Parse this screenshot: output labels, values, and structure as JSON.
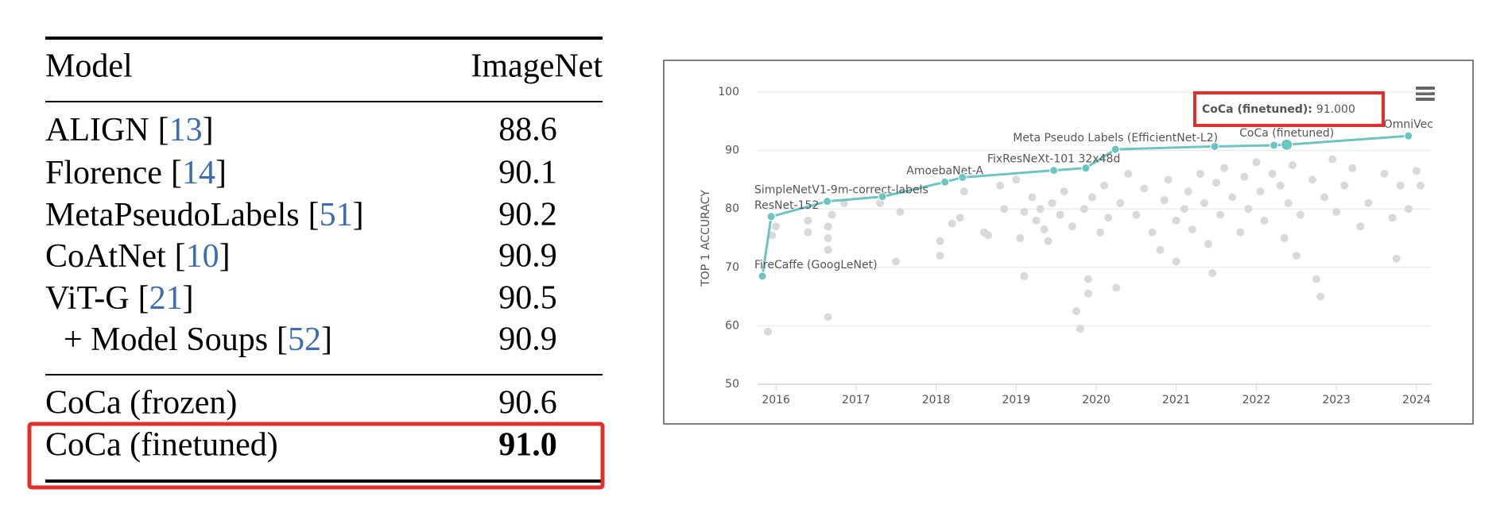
{
  "table": {
    "header": {
      "model": "Model",
      "score": "ImageNet"
    },
    "rows": [
      {
        "model": "ALIGN",
        "ref": "[13]",
        "value": "88.6"
      },
      {
        "model": "Florence",
        "ref": "[14]",
        "value": "90.1"
      },
      {
        "model": "MetaPseudoLabels",
        "ref": "[51]",
        "value": "90.2"
      },
      {
        "model": "CoAtNet",
        "ref": "[10]",
        "value": "90.9"
      },
      {
        "model": "ViT-G",
        "ref": "[21]",
        "value": "90.5"
      },
      {
        "model": "+ Model Soups",
        "ref": "[52]",
        "value": "90.9"
      }
    ],
    "coca_rows": [
      {
        "model": "CoCa (frozen)",
        "value": "90.6"
      },
      {
        "model": "CoCa (finetuned)",
        "value": "91.0"
      }
    ]
  },
  "chart_data": {
    "type": "scatter",
    "y_label": "TOP 1 ACCURACY",
    "xlim": [
      2015.77,
      2024.19
    ],
    "xticks": [
      2016,
      2017,
      2018,
      2019,
      2020,
      2021,
      2022,
      2023,
      2024
    ],
    "ylim": [
      50,
      100
    ],
    "yticks": [
      50,
      60,
      70,
      80,
      90,
      100
    ],
    "grid": true,
    "points": {
      "color": "#d9d9d9",
      "x": [
        2015.9,
        2015.95,
        2016.0,
        2016.4,
        2016.4,
        2016.65,
        2016.65,
        2016.65,
        2016.65,
        2016.7,
        2016.85,
        2017.3,
        2017.5,
        2017.55,
        2018.05,
        2018.05,
        2018.2,
        2018.3,
        2018.35,
        2018.6,
        2018.65,
        2018.8,
        2018.85,
        2019.0,
        2019.05,
        2019.1,
        2019.1,
        2019.2,
        2019.25,
        2019.3,
        2019.35,
        2019.4,
        2019.45,
        2019.55,
        2019.6,
        2019.7,
        2019.75,
        2019.8,
        2019.85,
        2019.9,
        2019.9,
        2019.95,
        2020.05,
        2020.1,
        2020.15,
        2020.25,
        2020.3,
        2020.4,
        2020.5,
        2020.6,
        2020.7,
        2020.8,
        2020.85,
        2020.9,
        2021.0,
        2021.0,
        2021.1,
        2021.15,
        2021.2,
        2021.3,
        2021.35,
        2021.4,
        2021.45,
        2021.5,
        2021.55,
        2021.6,
        2021.7,
        2021.8,
        2021.85,
        2021.9,
        2022.0,
        2022.05,
        2022.1,
        2022.2,
        2022.3,
        2022.35,
        2022.4,
        2022.45,
        2022.5,
        2022.55,
        2022.7,
        2022.75,
        2022.8,
        2022.85,
        2022.95,
        2023.0,
        2023.1,
        2023.2,
        2023.3,
        2023.4,
        2023.6,
        2023.7,
        2023.75,
        2023.8,
        2023.9,
        2024.0,
        2024.05
      ],
      "y": [
        59,
        75.5,
        77,
        78,
        76,
        61.5,
        75,
        73,
        77,
        79,
        81,
        81,
        71,
        79.5,
        72,
        74.5,
        77.5,
        78.5,
        83,
        76,
        75.5,
        84,
        80,
        85,
        75,
        79.5,
        68.5,
        82,
        78,
        80,
        76.5,
        74.5,
        81,
        79,
        83,
        77,
        62.5,
        59.5,
        80,
        65.5,
        68,
        82,
        76,
        84,
        78.5,
        66.5,
        81,
        86,
        79,
        83.5,
        76,
        73,
        81.5,
        85,
        78,
        71,
        80,
        83,
        76.5,
        86,
        81,
        74,
        69,
        84.5,
        79,
        87,
        82,
        76,
        85.5,
        80,
        88,
        83,
        78,
        86,
        84,
        75,
        81,
        87.5,
        72,
        79,
        85,
        68,
        65,
        82,
        88.5,
        79.5,
        84,
        87,
        77,
        81,
        86,
        78.5,
        71.5,
        84,
        80,
        86.5,
        84
      ]
    },
    "frontier": {
      "color": "#6cc5c0",
      "x": [
        2015.83,
        2015.94,
        2016.64,
        2017.33,
        2018.11,
        2018.33,
        2019.47,
        2019.87,
        2020.24,
        2021.48,
        2022.22,
        2022.38,
        2023.9
      ],
      "y": [
        68.5,
        78.7,
        81.3,
        82.1,
        84.6,
        85.4,
        86.6,
        87.0,
        90.2,
        90.7,
        90.9,
        91.0,
        92.5
      ],
      "labels": [
        "FireCaffe (GoogLeNet)",
        "ResNet-152",
        "SimpleNetV1-9m-correct-labels",
        null,
        "AmoebaNet-A",
        null,
        "FixResNeXt-101 32x48d",
        null,
        "Meta Pseudo Labels (EfficientNet-L2)",
        null,
        null,
        "CoCa (finetuned)",
        "OmniVec"
      ]
    },
    "tooltip": {
      "label": "CoCa (finetuned):",
      "value": "91.000"
    }
  }
}
